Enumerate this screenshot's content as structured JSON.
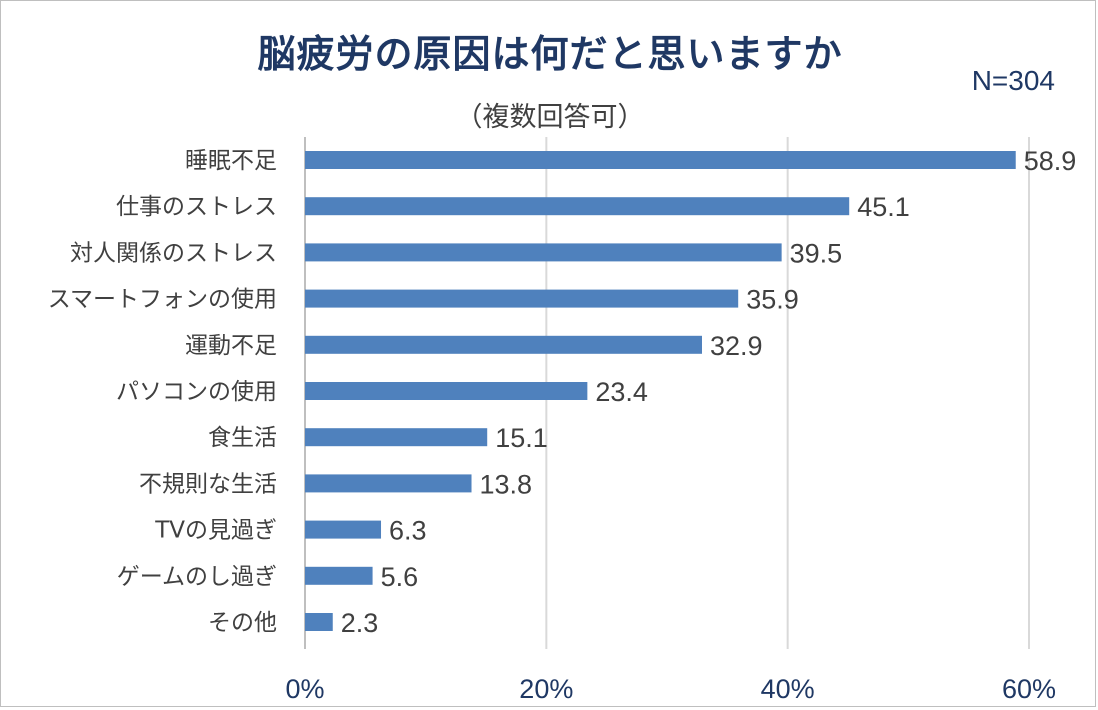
{
  "chart_data": {
    "type": "bar",
    "orientation": "horizontal",
    "title": "脳疲労の原因は何だと思いますか",
    "subtitle": "（複数回答可）",
    "sample_size": "N=304",
    "categories": [
      "睡眠不足",
      "仕事のストレス",
      "対人関係のストレス",
      "スマートフォンの使用",
      "運動不足",
      "パソコンの使用",
      "食生活",
      "不規則な生活",
      "TVの見過ぎ",
      "ゲームのし過ぎ",
      "その他"
    ],
    "values": [
      58.9,
      45.1,
      39.5,
      35.9,
      32.9,
      23.4,
      15.1,
      13.8,
      6.3,
      5.6,
      2.3
    ],
    "value_labels": [
      "58.9",
      "45.1",
      "39.5",
      "35.9",
      "32.9",
      "23.4",
      "15.1",
      "13.8",
      "6.3",
      "5.6",
      "2.3"
    ],
    "xlim": [
      0,
      60
    ],
    "x_ticks": [
      0,
      20,
      40,
      60
    ],
    "x_tick_labels": [
      "0%",
      "20%",
      "40%",
      "60%"
    ],
    "grid": "vertical",
    "bar_color": "#4f81bd",
    "grid_color": "#d9d9d9"
  }
}
